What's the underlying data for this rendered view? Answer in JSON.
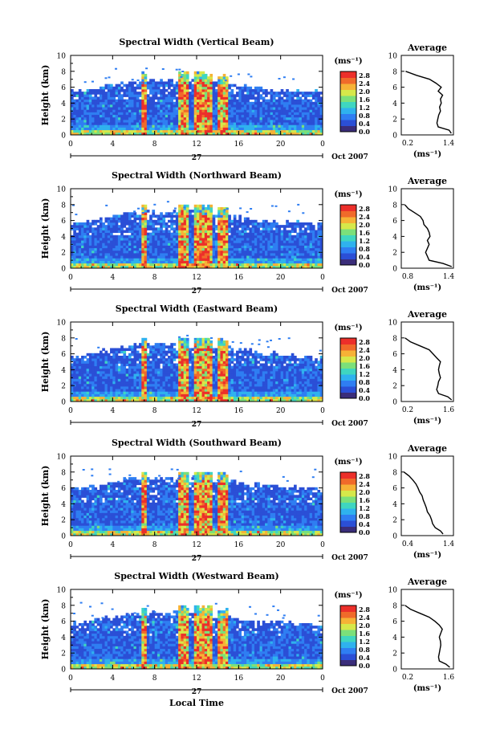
{
  "figure": {
    "xlabel": "Local Time",
    "date_label": "Oct 2007",
    "day_label": "27",
    "height_label": "Height (km)",
    "colorbar_unit": "(ms⁻¹)",
    "average_title": "Average"
  },
  "chart_data": [
    {
      "type": "heatmap",
      "title": "Spectral Width (Vertical Beam)",
      "xlabel": "Local Time",
      "ylabel": "Height (km)",
      "x_ticks": [
        "0",
        "4",
        "8",
        "12",
        "16",
        "20",
        "0"
      ],
      "y_ticks": [
        "0",
        "2",
        "4",
        "6",
        "8",
        "10"
      ],
      "xlim": [
        0,
        24
      ],
      "ylim": [
        0,
        10
      ],
      "colorbar": {
        "unit": "(ms⁻¹)",
        "ticks": [
          "0.0",
          "0.4",
          "0.8",
          "1.2",
          "1.6",
          "2.0",
          "2.4",
          "2.8"
        ],
        "range": [
          0,
          3.0
        ]
      },
      "day": "27",
      "month": "Oct 2007",
      "convective_bands": [
        [
          6.7,
          7.3
        ],
        [
          10.2,
          11.3
        ],
        [
          11.8,
          13.6
        ],
        [
          14.0,
          15.0
        ]
      ],
      "echo_top_km": {
        "0": 5.4,
        "6": 6.8,
        "12": 7.0,
        "18": 5.8,
        "24": 5.4
      },
      "average_profile": {
        "title": "Average",
        "xlabel": "(ms⁻¹)",
        "x_ticks": [
          "0.2",
          "1.4"
        ],
        "xlim": [
          0.2,
          1.4
        ],
        "y_ticks": [
          "0",
          "2",
          "4",
          "6",
          "8",
          "10"
        ],
        "ylim": [
          0,
          10
        ],
        "height_km": [
          0.2,
          0.6,
          1.0,
          1.5,
          2.0,
          2.5,
          3.0,
          3.5,
          4.0,
          4.5,
          5.0,
          5.5,
          6.0,
          6.5,
          7.0,
          7.5,
          8.0
        ],
        "width_ms": [
          1.35,
          1.3,
          1.05,
          1.02,
          1.04,
          1.06,
          1.1,
          1.08,
          1.12,
          1.1,
          1.15,
          1.05,
          1.12,
          1.0,
          0.85,
          0.55,
          0.3
        ]
      }
    },
    {
      "type": "heatmap",
      "title": "Spectral Width (Northward Beam)",
      "xlabel": "Local Time",
      "ylabel": "Height (km)",
      "x_ticks": [
        "0",
        "4",
        "8",
        "12",
        "16",
        "20",
        "0"
      ],
      "y_ticks": [
        "0",
        "2",
        "4",
        "6",
        "8",
        "10"
      ],
      "xlim": [
        0,
        24
      ],
      "ylim": [
        0,
        10
      ],
      "colorbar": {
        "unit": "(ms⁻¹)",
        "ticks": [
          "0.0",
          "0.4",
          "0.8",
          "1.2",
          "1.6",
          "2.0",
          "2.4",
          "2.8"
        ],
        "range": [
          0,
          3.0
        ]
      },
      "day": "27",
      "month": "Oct 2007",
      "convective_bands": [
        [
          6.7,
          7.3
        ],
        [
          10.2,
          11.3
        ],
        [
          11.8,
          13.6
        ],
        [
          14.0,
          15.0
        ]
      ],
      "echo_top_km": {
        "0": 5.6,
        "6": 7.0,
        "12": 7.2,
        "18": 6.0,
        "24": 5.6
      },
      "average_profile": {
        "title": "Average",
        "xlabel": "(ms⁻¹)",
        "x_ticks": [
          "0.8",
          "1.4"
        ],
        "xlim": [
          0.8,
          1.4
        ],
        "y_ticks": [
          "0",
          "2",
          "4",
          "6",
          "8",
          "10"
        ],
        "ylim": [
          0,
          10
        ],
        "height_km": [
          0.2,
          0.6,
          1.0,
          1.5,
          2.0,
          2.5,
          3.0,
          3.5,
          4.0,
          4.5,
          5.0,
          5.5,
          6.0,
          6.5,
          7.0,
          7.5,
          8.0
        ],
        "width_ms": [
          1.38,
          1.28,
          1.12,
          1.1,
          1.08,
          1.1,
          1.12,
          1.1,
          1.13,
          1.12,
          1.1,
          1.06,
          1.05,
          1.02,
          0.95,
          0.88,
          0.84
        ]
      }
    },
    {
      "type": "heatmap",
      "title": "Spectral Width (Eastward Beam)",
      "xlabel": "Local Time",
      "ylabel": "Height (km)",
      "x_ticks": [
        "0",
        "4",
        "8",
        "12",
        "16",
        "20",
        "0"
      ],
      "y_ticks": [
        "0",
        "2",
        "4",
        "6",
        "8",
        "10"
      ],
      "xlim": [
        0,
        24
      ],
      "ylim": [
        0,
        10
      ],
      "colorbar": {
        "unit": "(ms⁻¹)",
        "ticks": [
          "0.0",
          "0.4",
          "0.8",
          "1.2",
          "1.6",
          "2.0",
          "2.4",
          "2.8"
        ],
        "range": [
          0,
          3.0
        ]
      },
      "day": "27",
      "month": "Oct 2007",
      "convective_bands": [
        [
          6.7,
          7.3
        ],
        [
          10.2,
          11.3
        ],
        [
          11.8,
          13.6
        ],
        [
          14.0,
          15.0
        ]
      ],
      "echo_top_km": {
        "0": 5.6,
        "6": 7.2,
        "12": 7.2,
        "18": 6.2,
        "24": 5.6
      },
      "average_profile": {
        "title": "Average",
        "xlabel": "(ms⁻¹)",
        "x_ticks": [
          "0.2",
          "1.6"
        ],
        "xlim": [
          0.2,
          1.6
        ],
        "y_ticks": [
          "0",
          "2",
          "4",
          "6",
          "8",
          "10"
        ],
        "ylim": [
          0,
          10
        ],
        "height_km": [
          0.2,
          0.6,
          1.0,
          1.5,
          2.0,
          2.5,
          3.0,
          3.5,
          4.0,
          4.5,
          5.0,
          5.5,
          6.0,
          6.5,
          7.0,
          7.5,
          8.0
        ],
        "width_ms": [
          1.55,
          1.45,
          1.2,
          1.15,
          1.18,
          1.2,
          1.25,
          1.22,
          1.2,
          1.22,
          1.25,
          1.15,
          1.05,
          0.95,
          0.7,
          0.45,
          0.3
        ]
      }
    },
    {
      "type": "heatmap",
      "title": "Spectral Width (Southward Beam)",
      "xlabel": "Local Time",
      "ylabel": "Height (km)",
      "x_ticks": [
        "0",
        "4",
        "8",
        "12",
        "16",
        "20",
        "0"
      ],
      "y_ticks": [
        "0",
        "2",
        "4",
        "6",
        "8",
        "10"
      ],
      "xlim": [
        0,
        24
      ],
      "ylim": [
        0,
        10
      ],
      "colorbar": {
        "unit": "(ms⁻¹)",
        "ticks": [
          "0.0",
          "0.4",
          "0.8",
          "1.2",
          "1.6",
          "2.0",
          "2.4",
          "2.8"
        ],
        "range": [
          0,
          3.0
        ]
      },
      "day": "27",
      "month": "Oct 2007",
      "convective_bands": [
        [
          6.7,
          7.3
        ],
        [
          10.2,
          11.3
        ],
        [
          11.8,
          13.6
        ],
        [
          14.0,
          15.0
        ]
      ],
      "echo_top_km": {
        "0": 5.8,
        "6": 7.2,
        "12": 7.2,
        "18": 6.4,
        "24": 5.8
      },
      "average_profile": {
        "title": "Average",
        "xlabel": "(ms⁻¹)",
        "x_ticks": [
          "0.4",
          "1.4"
        ],
        "xlim": [
          0.4,
          1.4
        ],
        "y_ticks": [
          "0",
          "2",
          "4",
          "6",
          "8",
          "10"
        ],
        "ylim": [
          0,
          10
        ],
        "height_km": [
          0.2,
          0.6,
          1.0,
          1.5,
          2.0,
          2.5,
          3.0,
          3.5,
          4.0,
          4.5,
          5.0,
          5.5,
          6.0,
          6.5,
          7.0,
          7.5,
          8.0
        ],
        "width_ms": [
          1.2,
          1.15,
          1.05,
          1.0,
          0.98,
          0.95,
          0.9,
          0.88,
          0.85,
          0.82,
          0.8,
          0.75,
          0.72,
          0.68,
          0.62,
          0.55,
          0.45
        ]
      }
    },
    {
      "type": "heatmap",
      "title": "Spectral Width (Westward Beam)",
      "xlabel": "Local Time",
      "ylabel": "Height (km)",
      "x_ticks": [
        "0",
        "4",
        "8",
        "12",
        "16",
        "20",
        "0"
      ],
      "y_ticks": [
        "0",
        "2",
        "4",
        "6",
        "8",
        "10"
      ],
      "xlim": [
        0,
        24
      ],
      "ylim": [
        0,
        10
      ],
      "colorbar": {
        "unit": "(ms⁻¹)",
        "ticks": [
          "0.0",
          "0.4",
          "0.8",
          "1.2",
          "1.6",
          "2.0",
          "2.4",
          "2.8"
        ],
        "range": [
          0,
          3.0
        ]
      },
      "day": "27",
      "month": "Oct 2007",
      "convective_bands": [
        [
          6.7,
          7.3
        ],
        [
          10.2,
          11.3
        ],
        [
          11.8,
          13.6
        ],
        [
          14.0,
          15.0
        ]
      ],
      "echo_top_km": {
        "0": 5.6,
        "6": 7.0,
        "12": 7.0,
        "18": 6.0,
        "24": 5.6
      },
      "average_profile": {
        "title": "Average",
        "xlabel": "(ms⁻¹)",
        "x_ticks": [
          "0.2",
          "1.6"
        ],
        "xlim": [
          0.2,
          1.6
        ],
        "y_ticks": [
          "0",
          "2",
          "4",
          "6",
          "8",
          "10"
        ],
        "ylim": [
          0,
          10
        ],
        "height_km": [
          0.2,
          0.6,
          1.0,
          1.5,
          2.0,
          2.5,
          3.0,
          3.5,
          4.0,
          4.5,
          5.0,
          5.5,
          6.0,
          6.5,
          7.0,
          7.5,
          8.0
        ],
        "width_ms": [
          1.5,
          1.4,
          1.22,
          1.2,
          1.22,
          1.24,
          1.26,
          1.25,
          1.22,
          1.26,
          1.3,
          1.22,
          1.1,
          0.95,
          0.7,
          0.45,
          0.3
        ]
      }
    }
  ],
  "colormap": [
    "#3a2d7a",
    "#2b4fd6",
    "#2f7ef2",
    "#2fb2ee",
    "#3fd6c0",
    "#7be07a",
    "#d6e84a",
    "#f6b236",
    "#f06a2a",
    "#ec2f2a"
  ]
}
